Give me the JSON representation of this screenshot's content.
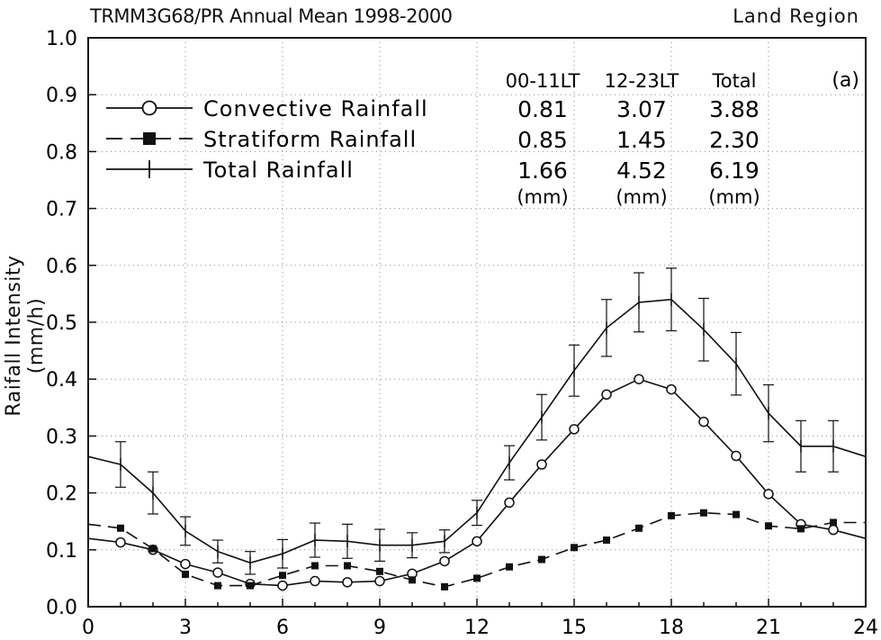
{
  "header": {
    "title": "TRMM3G68/PR  Annual Mean  1998-2000",
    "region": "Land Region"
  },
  "chart_data": {
    "type": "line",
    "title": "TRMM3G68/PR  Annual Mean  1998-2000",
    "subtitle": "Land Region",
    "panel_label": "(a)",
    "ylabel": "Raifall Intensity (mm/h)",
    "xlabel": "",
    "xlim": [
      0,
      24
    ],
    "ylim": [
      0.0,
      1.0
    ],
    "x_ticks": [
      0,
      3,
      6,
      9,
      12,
      15,
      18,
      21,
      24
    ],
    "y_ticks": [
      "0.0",
      "0.1",
      "0.2",
      "0.3",
      "0.4",
      "0.5",
      "0.6",
      "0.7",
      "0.8",
      "0.9",
      "1.0"
    ],
    "grid": true,
    "legend_position": "top-left",
    "x": [
      0,
      1,
      2,
      3,
      4,
      5,
      6,
      7,
      8,
      9,
      10,
      11,
      12,
      13,
      14,
      15,
      16,
      17,
      18,
      19,
      20,
      21,
      22,
      23,
      24
    ],
    "series": [
      {
        "name": "Convective Rainfall",
        "marker": "open-circle",
        "line_style": "solid",
        "values": [
          0.12,
          0.113,
          0.1,
          0.075,
          0.06,
          0.04,
          0.037,
          0.045,
          0.043,
          0.045,
          0.058,
          0.08,
          0.115,
          0.183,
          0.25,
          0.312,
          0.373,
          0.4,
          0.382,
          0.325,
          0.265,
          0.198,
          0.145,
          0.135,
          0.12
        ]
      },
      {
        "name": "Stratiform Rainfall",
        "marker": "filled-square",
        "line_style": "dashed",
        "values": [
          0.145,
          0.138,
          0.102,
          0.057,
          0.037,
          0.037,
          0.055,
          0.072,
          0.072,
          0.062,
          0.047,
          0.035,
          0.05,
          0.07,
          0.083,
          0.104,
          0.117,
          0.138,
          0.16,
          0.165,
          0.162,
          0.142,
          0.137,
          0.148,
          0.148
        ]
      },
      {
        "name": "Total Rainfall",
        "marker": "plus",
        "line_style": "solid",
        "values": [
          0.264,
          0.25,
          0.2,
          0.133,
          0.097,
          0.077,
          0.093,
          0.117,
          0.115,
          0.108,
          0.108,
          0.115,
          0.165,
          0.253,
          0.333,
          0.415,
          0.49,
          0.535,
          0.54,
          0.487,
          0.427,
          0.34,
          0.282,
          0.282,
          0.264
        ],
        "error": [
          0,
          0.04,
          0.037,
          0.025,
          0.02,
          0.02,
          0.025,
          0.03,
          0.03,
          0.028,
          0.022,
          0.02,
          0.022,
          0.03,
          0.04,
          0.045,
          0.05,
          0.052,
          0.055,
          0.055,
          0.055,
          0.05,
          0.045,
          0.045,
          0
        ]
      }
    ],
    "table": {
      "columns": [
        "00-11LT",
        "12-23LT",
        "Total"
      ],
      "rows": [
        {
          "label": "Convective Rainfall",
          "values": [
            "0.81",
            "3.07",
            "3.88"
          ]
        },
        {
          "label": "Stratiform Rainfall",
          "values": [
            "0.85",
            "1.45",
            "2.30"
          ]
        },
        {
          "label": "Total Rainfall",
          "values": [
            "1.66",
            "4.52",
            "6.19"
          ]
        }
      ],
      "units": [
        "(mm)",
        "(mm)",
        "(mm)"
      ]
    }
  }
}
